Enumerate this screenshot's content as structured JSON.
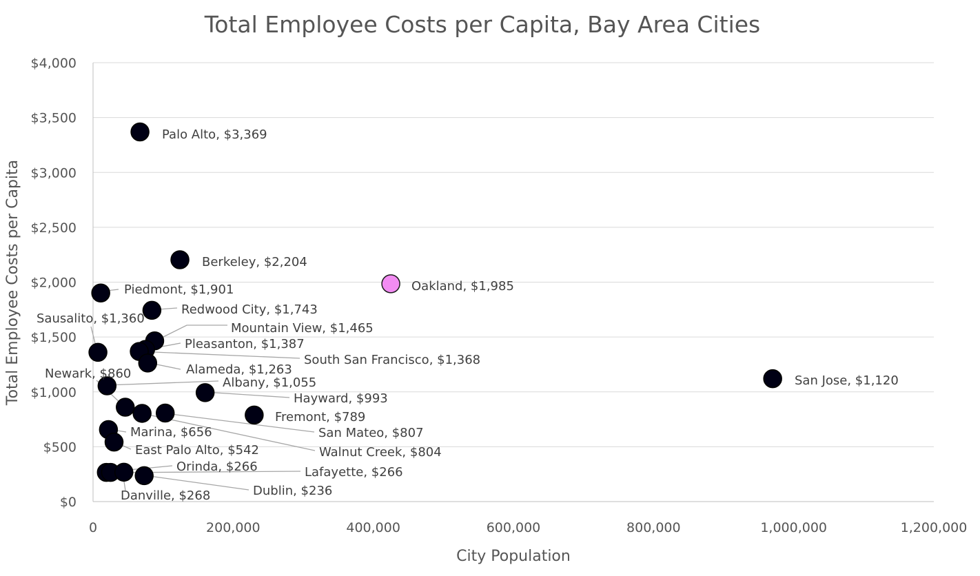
{
  "chart_data": {
    "type": "scatter",
    "title": "Total Employee Costs per Capita, Bay Area Cities",
    "xlabel": "City Population",
    "ylabel": "Total Employee Costs per Capita",
    "xlim": [
      0,
      1200000
    ],
    "ylim": [
      0,
      4000
    ],
    "x_ticks": [
      0,
      200000,
      400000,
      600000,
      800000,
      1000000,
      1200000
    ],
    "x_tick_labels": [
      "0",
      "200,000",
      "400,000",
      "600,000",
      "800,000",
      "1,000,000",
      "1,200,000"
    ],
    "y_ticks": [
      0,
      500,
      1000,
      1500,
      2000,
      2500,
      3000,
      3500,
      4000
    ],
    "y_tick_labels": [
      "$0",
      "$500",
      "$1,000",
      "$1,500",
      "$2,000",
      "$2,500",
      "$3,000",
      "$3,500",
      "$4,000"
    ],
    "grid": true,
    "default_color": "#000014",
    "highlight_color": "#f28cf2",
    "points": [
      {
        "label": "Palo Alto, $3,369",
        "x": 67000,
        "y": 3369,
        "highlight": false
      },
      {
        "label": "Berkeley, $2,204",
        "x": 124000,
        "y": 2204,
        "highlight": false
      },
      {
        "label": "Oakland, $1,985",
        "x": 425000,
        "y": 1985,
        "highlight": true
      },
      {
        "label": "Piedmont, $1,901",
        "x": 11000,
        "y": 1901,
        "highlight": false
      },
      {
        "label": "Redwood City, $1,743",
        "x": 84000,
        "y": 1743,
        "highlight": false
      },
      {
        "label": "Sausalito, $1,360",
        "x": 7000,
        "y": 1360,
        "highlight": false
      },
      {
        "label": "Mountain View, $1,465",
        "x": 88000,
        "y": 1465,
        "highlight": false
      },
      {
        "label": "Pleasanton, $1,387",
        "x": 75000,
        "y": 1387,
        "highlight": false
      },
      {
        "label": "South San Francisco, $1,368",
        "x": 66000,
        "y": 1368,
        "highlight": false
      },
      {
        "label": "Alameda, $1,263",
        "x": 78000,
        "y": 1263,
        "highlight": false
      },
      {
        "label": "Albany, $1,055",
        "x": 20000,
        "y": 1055,
        "highlight": false
      },
      {
        "label": "Newark, $860",
        "x": 46000,
        "y": 860,
        "highlight": false
      },
      {
        "label": "San Jose, $1,120",
        "x": 970000,
        "y": 1120,
        "highlight": false
      },
      {
        "label": "Hayward, $993",
        "x": 160000,
        "y": 993,
        "highlight": false
      },
      {
        "label": "Fremont, $789",
        "x": 230000,
        "y": 789,
        "highlight": false
      },
      {
        "label": "San Mateo, $807",
        "x": 103000,
        "y": 807,
        "highlight": false
      },
      {
        "label": "Walnut Creek, $804",
        "x": 70000,
        "y": 804,
        "highlight": false
      },
      {
        "label": "Marina, $656",
        "x": 22000,
        "y": 656,
        "highlight": false
      },
      {
        "label": "East Palo Alto, $542",
        "x": 30000,
        "y": 542,
        "highlight": false
      },
      {
        "label": "Orinda, $266",
        "x": 19000,
        "y": 266,
        "highlight": false
      },
      {
        "label": "Lafayette, $266",
        "x": 25000,
        "y": 266,
        "highlight": false
      },
      {
        "label": "Danville, $268",
        "x": 44000,
        "y": 268,
        "highlight": false
      },
      {
        "label": "Dublin, $236",
        "x": 73000,
        "y": 236,
        "highlight": false
      }
    ]
  }
}
